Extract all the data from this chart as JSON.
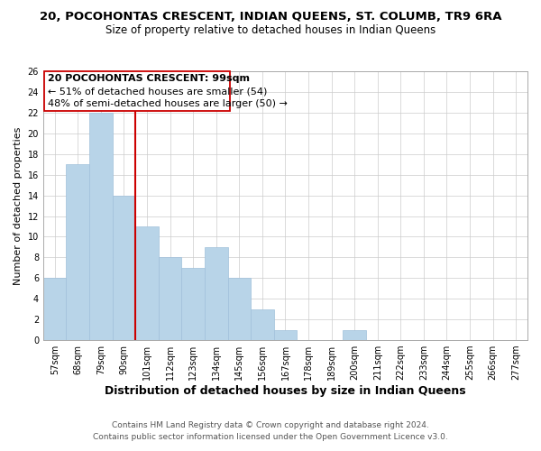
{
  "title": "20, POCOHONTAS CRESCENT, INDIAN QUEENS, ST. COLUMB, TR9 6RA",
  "subtitle": "Size of property relative to detached houses in Indian Queens",
  "xlabel": "Distribution of detached houses by size in Indian Queens",
  "ylabel": "Number of detached properties",
  "footer_line1": "Contains HM Land Registry data © Crown copyright and database right 2024.",
  "footer_line2": "Contains public sector information licensed under the Open Government Licence v3.0.",
  "annotation_line1": "20 POCOHONTAS CRESCENT: 99sqm",
  "annotation_line2": "← 51% of detached houses are smaller (54)",
  "annotation_line3": "48% of semi-detached houses are larger (50) →",
  "bar_labels": [
    "57sqm",
    "68sqm",
    "79sqm",
    "90sqm",
    "101sqm",
    "112sqm",
    "123sqm",
    "134sqm",
    "145sqm",
    "156sqm",
    "167sqm",
    "178sqm",
    "189sqm",
    "200sqm",
    "211sqm",
    "222sqm",
    "233sqm",
    "244sqm",
    "255sqm",
    "266sqm",
    "277sqm"
  ],
  "bar_values": [
    6,
    17,
    22,
    14,
    11,
    8,
    7,
    9,
    6,
    3,
    1,
    0,
    0,
    1,
    0,
    0,
    0,
    0,
    0,
    0,
    0
  ],
  "bar_color": "#b8d4e8",
  "bar_edge_color": "#a0c0da",
  "reference_line_color": "#cc0000",
  "ylim": [
    0,
    26
  ],
  "yticks": [
    0,
    2,
    4,
    6,
    8,
    10,
    12,
    14,
    16,
    18,
    20,
    22,
    24,
    26
  ],
  "background_color": "#ffffff",
  "grid_color": "#cccccc",
  "annotation_box_color": "#ffffff",
  "annotation_box_edge": "#cc0000",
  "title_fontsize": 9.5,
  "subtitle_fontsize": 8.5,
  "xlabel_fontsize": 9,
  "ylabel_fontsize": 8,
  "tick_fontsize": 7,
  "annotation_fontsize": 8,
  "footer_fontsize": 6.5
}
